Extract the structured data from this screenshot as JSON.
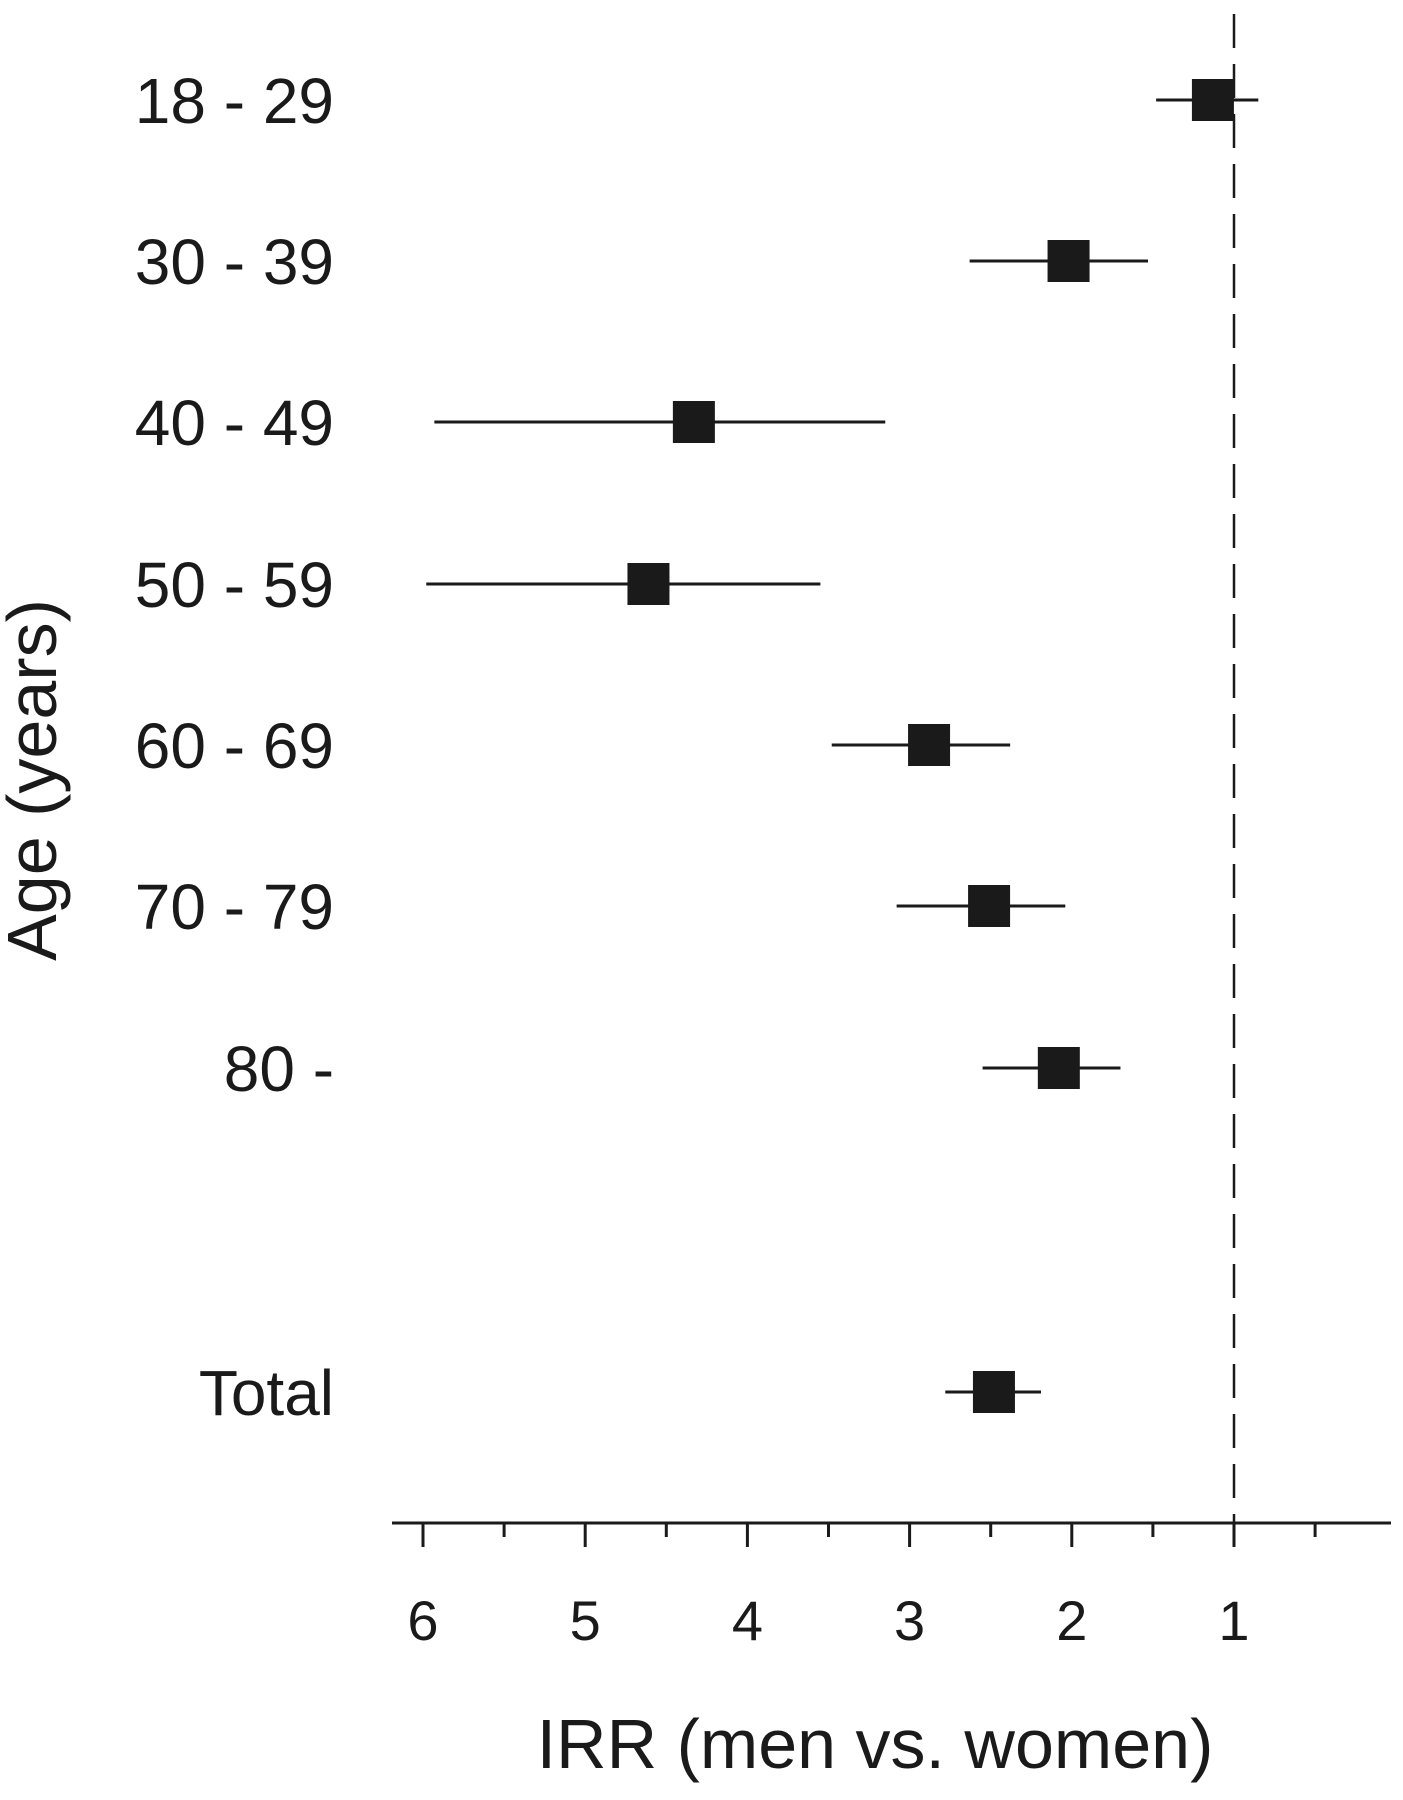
{
  "chart_data": {
    "type": "forest",
    "xlabel": "IRR (men vs. women)",
    "ylabel": "Age (years)",
    "x_reversed": true,
    "xlim": [
      6.2,
      0.0
    ],
    "x_ticks": [
      6,
      5,
      4,
      3,
      2,
      1
    ],
    "x_minor_ticks": [
      5.5,
      4.5,
      3.5,
      2.5,
      1.5,
      0.5
    ],
    "reference_line": 1,
    "reference_line_style": "dashed",
    "marker": "square",
    "color": "#1a1a1a",
    "rows": [
      {
        "label": "18 - 29",
        "estimate": 1.13,
        "lower": 0.85,
        "upper": 1.48
      },
      {
        "label": "30 - 39",
        "estimate": 2.02,
        "lower": 1.53,
        "upper": 2.63
      },
      {
        "label": "40 - 49",
        "estimate": 4.33,
        "lower": 3.15,
        "upper": 5.93
      },
      {
        "label": "50 - 59",
        "estimate": 4.61,
        "lower": 3.55,
        "upper": 5.98
      },
      {
        "label": "60 - 69",
        "estimate": 2.88,
        "lower": 2.38,
        "upper": 3.48
      },
      {
        "label": "70 - 79",
        "estimate": 2.51,
        "lower": 2.04,
        "upper": 3.08
      },
      {
        "label": "80 -",
        "estimate": 2.08,
        "lower": 1.7,
        "upper": 2.55
      },
      {
        "label": "Total",
        "estimate": 2.48,
        "lower": 2.19,
        "upper": 2.78
      }
    ]
  }
}
